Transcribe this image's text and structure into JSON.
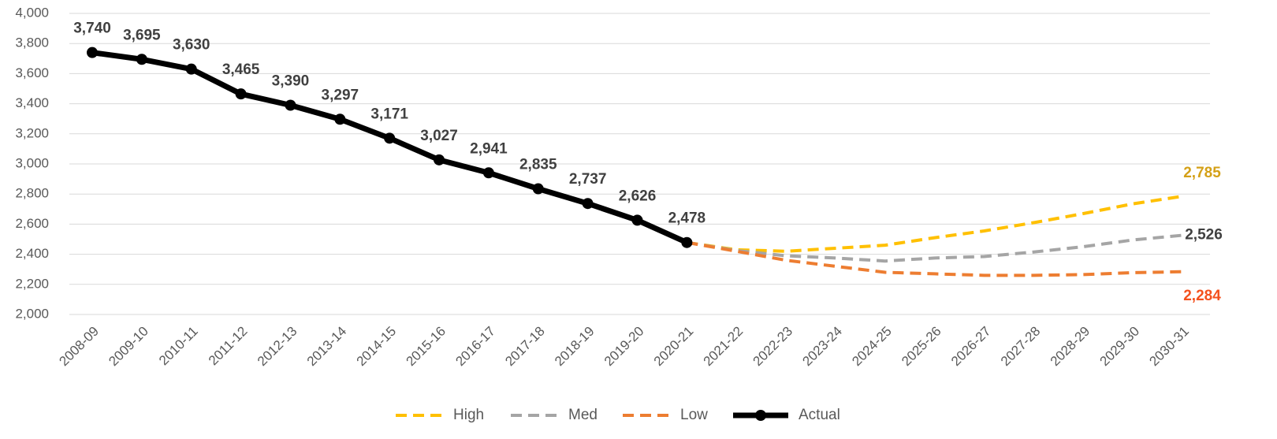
{
  "chart_data": {
    "type": "line",
    "categories": [
      "2008-09",
      "2009-10",
      "2010-11",
      "2011-12",
      "2012-13",
      "2013-14",
      "2014-15",
      "2015-16",
      "2016-17",
      "2017-18",
      "2018-19",
      "2019-20",
      "2020-21",
      "2021-22",
      "2022-23",
      "2023-24",
      "2024-25",
      "2025-26",
      "2026-27",
      "2027-28",
      "2028-29",
      "2029-30",
      "2030-31"
    ],
    "ylim": [
      2000,
      4000
    ],
    "yticks": [
      {
        "value": 2000,
        "label": "2,000"
      },
      {
        "value": 2200,
        "label": "2,200"
      },
      {
        "value": 2400,
        "label": "2,400"
      },
      {
        "value": 2600,
        "label": "2,600"
      },
      {
        "value": 2800,
        "label": "2,800"
      },
      {
        "value": 3000,
        "label": "3,000"
      },
      {
        "value": 3200,
        "label": "3,200"
      },
      {
        "value": 3400,
        "label": "3,400"
      },
      {
        "value": 3600,
        "label": "3,600"
      },
      {
        "value": 3800,
        "label": "3,800"
      },
      {
        "value": 4000,
        "label": "4,000"
      }
    ],
    "grid": true,
    "legend": "bottom",
    "series": [
      {
        "name": "High",
        "color": "#ffc000",
        "label_color": "#d4a017",
        "dashed": true,
        "values": [
          null,
          null,
          null,
          null,
          null,
          null,
          null,
          null,
          null,
          null,
          null,
          null,
          2478,
          2430,
          2420,
          2440,
          2460,
          2510,
          2555,
          2610,
          2670,
          2735,
          2785
        ],
        "value_labels": [
          null,
          null,
          null,
          null,
          null,
          null,
          null,
          null,
          null,
          null,
          null,
          null,
          null,
          null,
          null,
          null,
          null,
          null,
          null,
          null,
          null,
          null,
          "2,785"
        ]
      },
      {
        "name": "Med",
        "color": "#a5a5a5",
        "label_color": "#404040",
        "dashed": true,
        "values": [
          null,
          null,
          null,
          null,
          null,
          null,
          null,
          null,
          null,
          null,
          null,
          null,
          2478,
          2425,
          2390,
          2375,
          2355,
          2375,
          2385,
          2415,
          2450,
          2495,
          2526
        ],
        "value_labels": [
          null,
          null,
          null,
          null,
          null,
          null,
          null,
          null,
          null,
          null,
          null,
          null,
          null,
          null,
          null,
          null,
          null,
          null,
          null,
          null,
          null,
          null,
          "2,526"
        ]
      },
      {
        "name": "Low",
        "color": "#ed7d31",
        "label_color": "#f4511e",
        "dashed": true,
        "values": [
          null,
          null,
          null,
          null,
          null,
          null,
          null,
          null,
          null,
          null,
          null,
          null,
          2478,
          2420,
          2360,
          2320,
          2280,
          2270,
          2260,
          2260,
          2265,
          2278,
          2284
        ],
        "value_labels": [
          null,
          null,
          null,
          null,
          null,
          null,
          null,
          null,
          null,
          null,
          null,
          null,
          null,
          null,
          null,
          null,
          null,
          null,
          null,
          null,
          null,
          null,
          "2,284"
        ]
      },
      {
        "name": "Actual",
        "color": "#000000",
        "label_color": "#404040",
        "dashed": false,
        "markers": true,
        "values": [
          3740,
          3695,
          3630,
          3465,
          3390,
          3297,
          3171,
          3027,
          2941,
          2835,
          2737,
          2626,
          2478,
          null,
          null,
          null,
          null,
          null,
          null,
          null,
          null,
          null,
          null
        ],
        "value_labels": [
          "3,740",
          "3,695",
          "3,630",
          "3,465",
          "3,390",
          "3,297",
          "3,171",
          "3,027",
          "2,941",
          "2,835",
          "2,737",
          "2,626",
          "2,478",
          null,
          null,
          null,
          null,
          null,
          null,
          null,
          null,
          null,
          null
        ]
      }
    ]
  }
}
